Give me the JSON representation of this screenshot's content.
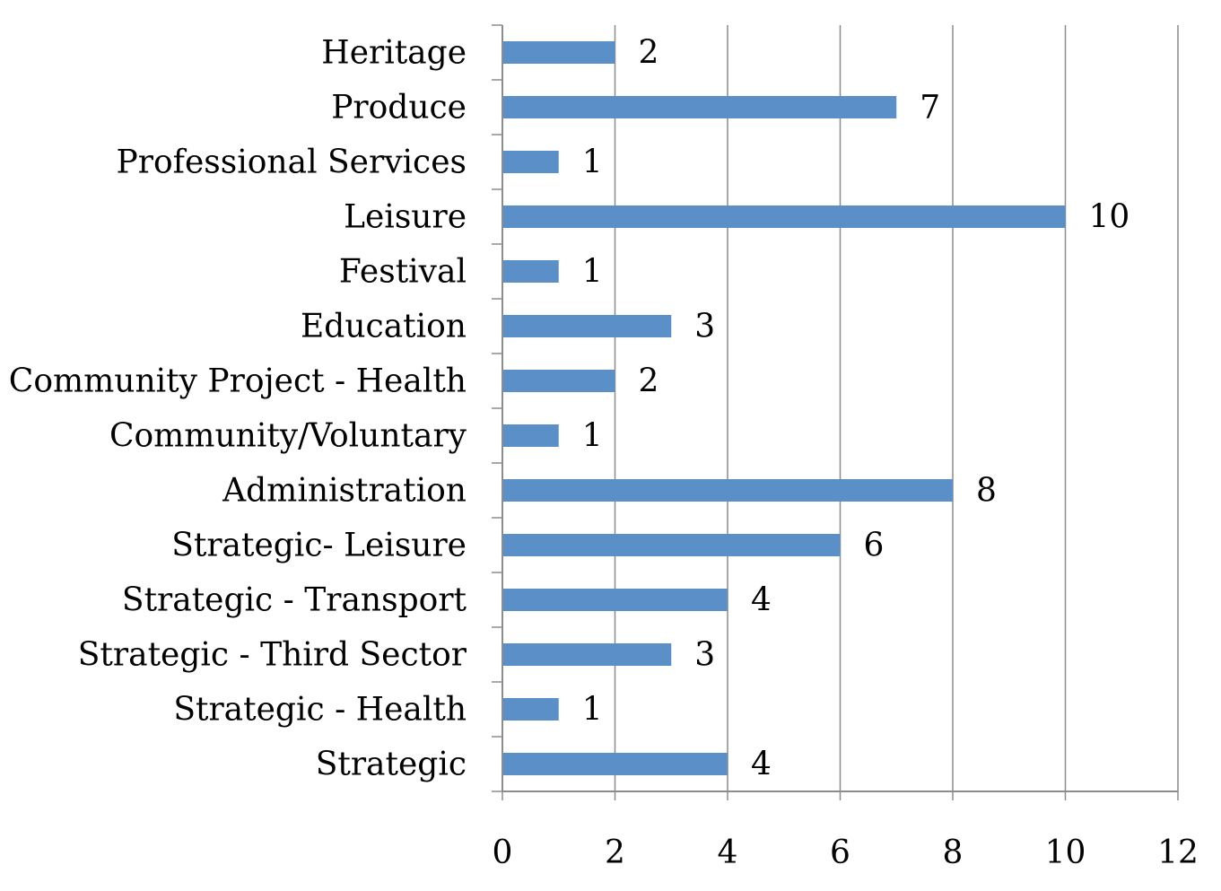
{
  "chart_data": {
    "type": "bar",
    "orientation": "horizontal",
    "categories": [
      "Heritage",
      "Produce",
      "Professional Services",
      "Leisure",
      "Festival",
      "Education",
      "Community Project - Health",
      "Community/Voluntary",
      "Administration",
      "Strategic-  Leisure",
      "Strategic - Transport",
      "Strategic - Third Sector",
      "Strategic - Health",
      "Strategic"
    ],
    "values": [
      2,
      7,
      1,
      10,
      1,
      3,
      2,
      1,
      8,
      6,
      4,
      3,
      1,
      4
    ],
    "x_ticks": [
      "0",
      "2",
      "4",
      "6",
      "8",
      "10",
      "12"
    ],
    "xlim": [
      0,
      12
    ],
    "title": "",
    "xlabel": "",
    "ylabel": "",
    "grid": "vertical",
    "legend": "none",
    "data_labels": true,
    "colors": {
      "bar": "#5b8fc8",
      "grid": "#8c8c8c",
      "axis": "#8c8c8c",
      "text": "#000000"
    }
  }
}
